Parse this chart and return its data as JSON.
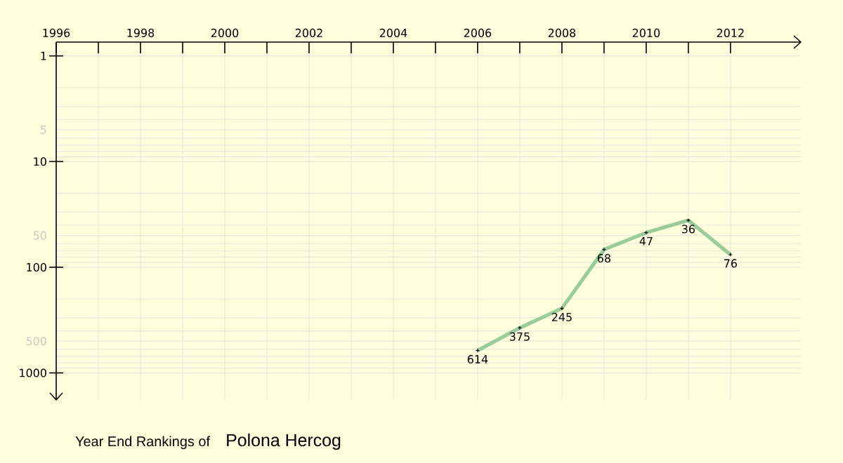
{
  "chart_data": {
    "type": "line",
    "title": "Year End Rankings of",
    "subtitle": "Polona Hercog",
    "x": [
      2006,
      2007,
      2008,
      2009,
      2010,
      2011,
      2012
    ],
    "values": [
      614,
      375,
      245,
      68,
      47,
      36,
      76
    ],
    "color": "#99cc99",
    "marker": "cross",
    "line_style": "solid",
    "data_labels": true,
    "grid": true,
    "log": "y",
    "xlim": [
      1996,
      2013.67
    ],
    "ylim": [
      1800,
      0.74
    ],
    "xticks": [
      1996,
      {
        "value": 1997,
        "label": null
      },
      1998,
      {
        "value": 1999,
        "label": null
      },
      2000,
      {
        "value": 2001,
        "label": null
      },
      2002,
      {
        "value": 2003,
        "label": null
      },
      2004,
      {
        "value": 2005,
        "label": null
      },
      2006,
      {
        "value": 2007,
        "label": null
      },
      2008,
      {
        "value": 2009,
        "label": null
      },
      2010,
      {
        "value": 2011,
        "label": null
      },
      2012
    ],
    "yticks": [
      1,
      {
        "value": 2,
        "label": null
      },
      {
        "value": 3,
        "label": null
      },
      {
        "value": 4,
        "label": null
      },
      5,
      {
        "value": 6,
        "label": null
      },
      {
        "value": 7,
        "label": null
      },
      {
        "value": 8,
        "label": null
      },
      {
        "value": 9,
        "label": null
      },
      10,
      {
        "value": 20,
        "label": null
      },
      {
        "value": 30,
        "label": null
      },
      {
        "value": 40,
        "label": null
      },
      50,
      {
        "value": 60,
        "label": null
      },
      {
        "value": 70,
        "label": null
      },
      {
        "value": 80,
        "label": null
      },
      {
        "value": 90,
        "label": null
      },
      100,
      {
        "value": 200,
        "label": null
      },
      {
        "value": 300,
        "label": null
      },
      {
        "value": 400,
        "label": null
      },
      500,
      {
        "value": 600,
        "label": null
      },
      {
        "value": 700,
        "label": null
      },
      {
        "value": 800,
        "label": null
      },
      {
        "value": 900,
        "label": null
      },
      1000
    ]
  }
}
